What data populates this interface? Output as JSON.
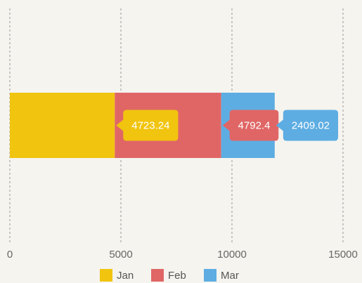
{
  "chart_data": {
    "type": "bar",
    "orientation": "horizontal",
    "stacked": true,
    "categories": [
      null
    ],
    "series": [
      {
        "name": "Jan",
        "color": "#f1c40f",
        "values": [
          4723.24
        ]
      },
      {
        "name": "Feb",
        "color": "#e06666",
        "values": [
          4792.4
        ]
      },
      {
        "name": "Mar",
        "color": "#5dade2",
        "values": [
          2409.02
        ]
      }
    ],
    "xlim": [
      0,
      15000
    ],
    "xticks": [
      0,
      5000,
      10000,
      15000
    ],
    "grid": true,
    "legend": "bottom"
  }
}
